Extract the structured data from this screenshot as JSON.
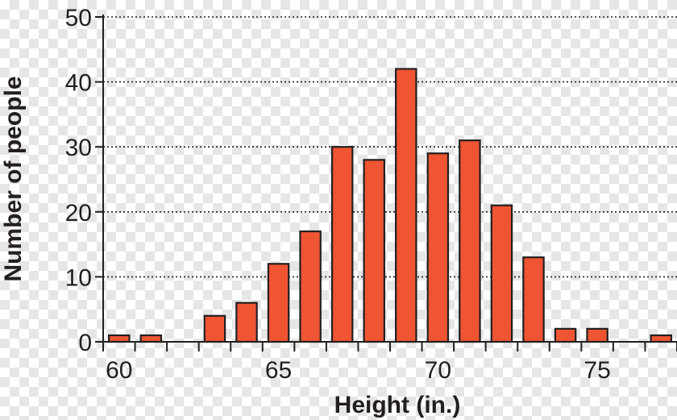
{
  "chart_data": {
    "type": "bar",
    "xlabel": "Height (in.)",
    "ylabel": "Number of people",
    "ylim": [
      0,
      50
    ],
    "xlim": [
      59.5,
      77.5
    ],
    "y_ticks": [
      0,
      10,
      20,
      30,
      40,
      50
    ],
    "x_ticks": [
      60,
      65,
      70,
      75
    ],
    "grid": "horizontal dotted",
    "bar_color": "#ef5533",
    "bars": [
      {
        "x": 60,
        "value": 1
      },
      {
        "x": 61,
        "value": 1
      },
      {
        "x": 62,
        "value": 0
      },
      {
        "x": 63,
        "value": 4
      },
      {
        "x": 64,
        "value": 6
      },
      {
        "x": 65,
        "value": 12
      },
      {
        "x": 66,
        "value": 17
      },
      {
        "x": 67,
        "value": 30
      },
      {
        "x": 68,
        "value": 28
      },
      {
        "x": 69,
        "value": 42
      },
      {
        "x": 70,
        "value": 29
      },
      {
        "x": 71,
        "value": 31
      },
      {
        "x": 72,
        "value": 21
      },
      {
        "x": 73,
        "value": 13
      },
      {
        "x": 74,
        "value": 2
      },
      {
        "x": 75,
        "value": 2
      },
      {
        "x": 76,
        "value": 0
      },
      {
        "x": 77,
        "value": 1
      }
    ]
  }
}
